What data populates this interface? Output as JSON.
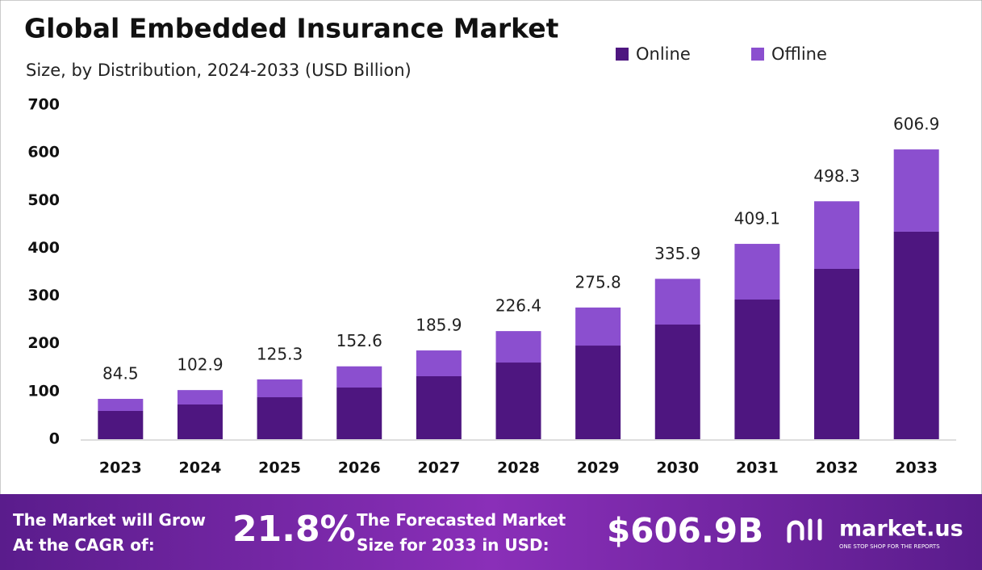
{
  "chart_data": {
    "type": "stacked-bar",
    "title": "Global Embedded Insurance Market",
    "subtitle": "Size, by Distribution, 2024-2033 (USD Billion)",
    "categories": [
      "2023",
      "2024",
      "2025",
      "2026",
      "2027",
      "2028",
      "2029",
      "2030",
      "2031",
      "2032",
      "2033"
    ],
    "series": [
      {
        "name": "Online",
        "color": "#4e1680",
        "values": [
          59.2,
          72.7,
          87.9,
          108.2,
          131.9,
          160.6,
          196.1,
          240.1,
          292.5,
          356.8,
          434.6
        ]
      },
      {
        "name": "Offline",
        "color": "#8b4fcf",
        "values": [
          25.3,
          30.2,
          37.4,
          44.4,
          54.0,
          65.8,
          79.7,
          95.8,
          116.6,
          141.5,
          172.3
        ]
      }
    ],
    "totals": [
      84.5,
      102.9,
      125.3,
      152.6,
      185.9,
      226.4,
      275.8,
      335.9,
      409.1,
      498.3,
      606.9
    ],
    "ylim": [
      0,
      700
    ],
    "yticks": [
      0,
      100,
      200,
      300,
      400,
      500,
      600,
      700
    ],
    "grid": false
  },
  "footer": {
    "cagr_text": "The Market will Grow At the CAGR of:",
    "cagr": "21.8%",
    "forecast_text": "The Forecasted Market Size for 2033 in USD:",
    "forecast": "$606.9B",
    "brand": "market.us",
    "tagline": "ONE STOP SHOP FOR THE REPORTS"
  }
}
